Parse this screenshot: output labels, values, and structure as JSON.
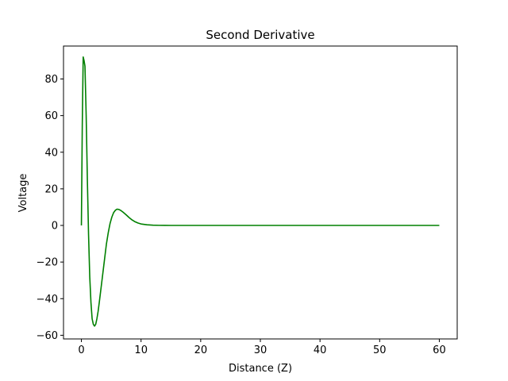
{
  "chart_data": {
    "type": "line",
    "title": "Second Derivative",
    "xlabel": "Distance (Z)",
    "ylabel": "Voltage",
    "xlim": [
      -3,
      63
    ],
    "ylim": [
      -62,
      98
    ],
    "xticks": [
      0,
      10,
      20,
      30,
      40,
      50,
      60
    ],
    "yticks": [
      -60,
      -40,
      -20,
      0,
      20,
      40,
      60,
      80
    ],
    "grid": false,
    "series": [
      {
        "color": "#008000",
        "x": [
          0,
          0.15,
          0.3,
          0.45,
          0.6,
          0.8,
          1.0,
          1.2,
          1.4,
          1.6,
          1.8,
          2.0,
          2.2,
          2.4,
          2.6,
          2.8,
          3.0,
          3.3,
          3.6,
          3.9,
          4.2,
          4.5,
          4.8,
          5.1,
          5.4,
          5.7,
          6.0,
          6.3,
          6.6,
          7.0,
          7.5,
          8.0,
          8.5,
          9.0,
          9.5,
          10.0,
          11.0,
          12.0,
          13.0,
          14.0,
          15.0,
          16.0,
          18.0,
          20.0,
          25.0,
          30.0,
          40.0,
          50.0,
          60.0
        ],
        "y": [
          0,
          55,
          92,
          90,
          87,
          60,
          25,
          -5,
          -28,
          -42,
          -51,
          -54,
          -55,
          -54,
          -51,
          -47,
          -42,
          -34,
          -26,
          -18,
          -10,
          -4,
          1,
          4.5,
          7,
          8.3,
          8.9,
          8.7,
          8.2,
          7.2,
          5.8,
          4.3,
          3.0,
          2.0,
          1.3,
          0.8,
          0.35,
          0.15,
          0.06,
          0.03,
          0.01,
          0.005,
          0,
          0,
          0,
          0,
          0,
          0,
          0
        ]
      }
    ]
  }
}
